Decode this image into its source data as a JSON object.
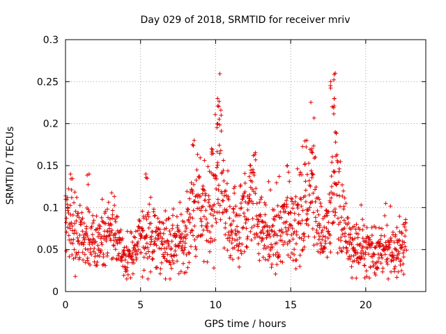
{
  "chart_data": {
    "type": "scatter",
    "title": "Day 029 of 2018, SRMTID for receiver mriv",
    "xlabel": "GPS time / hours",
    "ylabel": "SRMTID / TECUs",
    "xlim": [
      0,
      24
    ],
    "ylim": [
      0,
      0.3
    ],
    "xticks": [
      0,
      5,
      10,
      15,
      20
    ],
    "yticks": [
      0,
      0.05,
      0.1,
      0.15,
      0.2,
      0.25,
      0.3
    ],
    "ytick_labels": [
      "0",
      "0.05",
      "0.1",
      "0.15",
      "0.2",
      "0.25",
      "0.3"
    ],
    "grid": true,
    "marker": "+",
    "color": "#e00000",
    "series": [
      {
        "name": "SRMTID",
        "x_range_hours": [
          0,
          22.7
        ],
        "trend": [
          {
            "x": 0.0,
            "y": 0.085
          },
          {
            "x": 0.5,
            "y": 0.075
          },
          {
            "x": 1.0,
            "y": 0.055
          },
          {
            "x": 1.5,
            "y": 0.06
          },
          {
            "x": 2.0,
            "y": 0.05
          },
          {
            "x": 2.5,
            "y": 0.065
          },
          {
            "x": 3.0,
            "y": 0.07
          },
          {
            "x": 3.5,
            "y": 0.06
          },
          {
            "x": 4.0,
            "y": 0.035
          },
          {
            "x": 4.5,
            "y": 0.045
          },
          {
            "x": 5.0,
            "y": 0.06
          },
          {
            "x": 5.5,
            "y": 0.07
          },
          {
            "x": 6.0,
            "y": 0.06
          },
          {
            "x": 7.0,
            "y": 0.055
          },
          {
            "x": 8.0,
            "y": 0.065
          },
          {
            "x": 8.5,
            "y": 0.09
          },
          {
            "x": 9.0,
            "y": 0.1
          },
          {
            "x": 9.5,
            "y": 0.09
          },
          {
            "x": 10.0,
            "y": 0.12
          },
          {
            "x": 10.3,
            "y": 0.16
          },
          {
            "x": 10.6,
            "y": 0.09
          },
          {
            "x": 11.0,
            "y": 0.07
          },
          {
            "x": 11.5,
            "y": 0.06
          },
          {
            "x": 12.0,
            "y": 0.1
          },
          {
            "x": 12.5,
            "y": 0.11
          },
          {
            "x": 13.0,
            "y": 0.08
          },
          {
            "x": 13.5,
            "y": 0.065
          },
          {
            "x": 14.0,
            "y": 0.06
          },
          {
            "x": 14.5,
            "y": 0.08
          },
          {
            "x": 15.0,
            "y": 0.075
          },
          {
            "x": 15.5,
            "y": 0.085
          },
          {
            "x": 16.0,
            "y": 0.1
          },
          {
            "x": 16.4,
            "y": 0.13
          },
          {
            "x": 16.8,
            "y": 0.09
          },
          {
            "x": 17.2,
            "y": 0.06
          },
          {
            "x": 17.6,
            "y": 0.08
          },
          {
            "x": 17.9,
            "y": 0.15
          },
          {
            "x": 18.2,
            "y": 0.1
          },
          {
            "x": 18.6,
            "y": 0.07
          },
          {
            "x": 19.0,
            "y": 0.055
          },
          {
            "x": 19.5,
            "y": 0.05
          },
          {
            "x": 20.0,
            "y": 0.05
          },
          {
            "x": 20.5,
            "y": 0.045
          },
          {
            "x": 21.0,
            "y": 0.05
          },
          {
            "x": 21.5,
            "y": 0.045
          },
          {
            "x": 22.0,
            "y": 0.05
          },
          {
            "x": 22.5,
            "y": 0.055
          },
          {
            "x": 22.7,
            "y": 0.05
          }
        ],
        "peaks": [
          {
            "x": 10.2,
            "y": 0.23
          },
          {
            "x": 10.3,
            "y": 0.21
          },
          {
            "x": 10.1,
            "y": 0.2
          },
          {
            "x": 8.5,
            "y": 0.18
          },
          {
            "x": 9.8,
            "y": 0.17
          },
          {
            "x": 16.0,
            "y": 0.18
          },
          {
            "x": 16.4,
            "y": 0.17
          },
          {
            "x": 17.6,
            "y": 0.25
          },
          {
            "x": 17.9,
            "y": 0.26
          },
          {
            "x": 17.9,
            "y": 0.23
          },
          {
            "x": 17.8,
            "y": 0.22
          },
          {
            "x": 18.0,
            "y": 0.19
          },
          {
            "x": 14.8,
            "y": 0.15
          },
          {
            "x": 12.4,
            "y": 0.15
          },
          {
            "x": 0.4,
            "y": 0.14
          },
          {
            "x": 1.5,
            "y": 0.14
          },
          {
            "x": 5.4,
            "y": 0.14
          }
        ],
        "min_value": 0.015,
        "max_value": 0.262
      }
    ]
  }
}
